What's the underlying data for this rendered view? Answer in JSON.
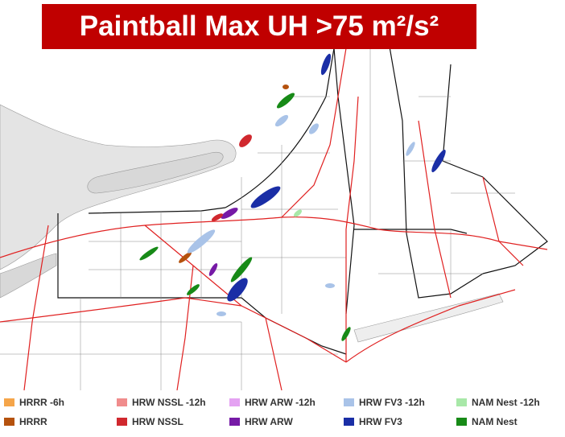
{
  "title": "Paintball Max UH >75 m²/s²",
  "legend": [
    {
      "label": "HRRR -6h",
      "color": "#f5a54a"
    },
    {
      "label": "HRW NSSL -12h",
      "color": "#f08c8c"
    },
    {
      "label": "HRW ARW -12h",
      "color": "#e4a2f2"
    },
    {
      "label": "HRW FV3 -12h",
      "color": "#a9c3e8"
    },
    {
      "label": "NAM Nest -12h",
      "color": "#a8e8a8"
    },
    {
      "label": "HRRR",
      "color": "#b5520e"
    },
    {
      "label": "HRW NSSL",
      "color": "#d0282e"
    },
    {
      "label": "HRW ARW",
      "color": "#761aa6"
    },
    {
      "label": "HRW FV3",
      "color": "#1a2ea6"
    },
    {
      "label": "NAM Nest",
      "color": "#178a17"
    }
  ]
}
